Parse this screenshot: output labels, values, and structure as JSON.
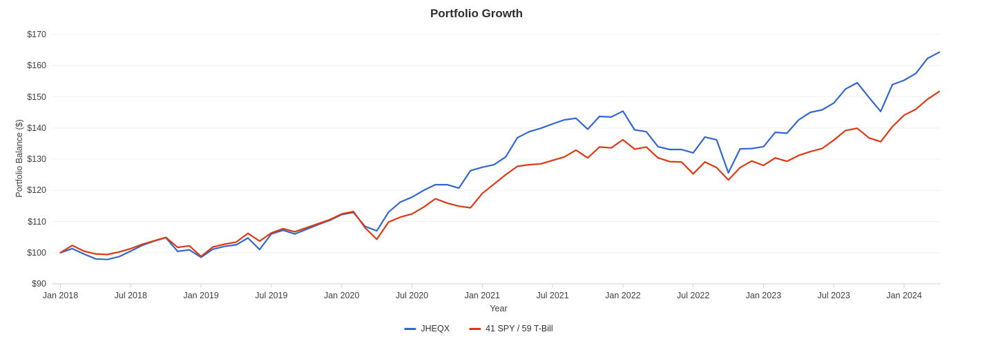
{
  "title": "Portfolio Growth",
  "background": "#ffffff",
  "colors": {
    "grid": "#f0f0f0",
    "axis": "#ccd2dc",
    "tick_text": "#3e3e3e",
    "title_text": "#2d2d2d",
    "series_blue": "#3366cc",
    "series_red": "#dc3912"
  },
  "axes": {
    "x_label": "Year",
    "y_label": "Portfolio Balance ($)",
    "y_ticks": [
      {
        "label": "$90",
        "value": 90
      },
      {
        "label": "$100",
        "value": 100
      },
      {
        "label": "$110",
        "value": 110
      },
      {
        "label": "$120",
        "value": 120
      },
      {
        "label": "$130",
        "value": 130
      },
      {
        "label": "$140",
        "value": 140
      },
      {
        "label": "$150",
        "value": 150
      },
      {
        "label": "$160",
        "value": 160
      },
      {
        "label": "$170",
        "value": 170
      }
    ],
    "x_ticks": [
      {
        "label": "Jan 2018",
        "month_index": 0
      },
      {
        "label": "Jul 2018",
        "month_index": 6
      },
      {
        "label": "Jan 2019",
        "month_index": 12
      },
      {
        "label": "Jul 2019",
        "month_index": 18
      },
      {
        "label": "Jan 2020",
        "month_index": 24
      },
      {
        "label": "Jul 2020",
        "month_index": 30
      },
      {
        "label": "Jan 2021",
        "month_index": 36
      },
      {
        "label": "Jul 2021",
        "month_index": 42
      },
      {
        "label": "Jan 2022",
        "month_index": 48
      },
      {
        "label": "Jul 2022",
        "month_index": 54
      },
      {
        "label": "Jan 2023",
        "month_index": 60
      },
      {
        "label": "Jul 2023",
        "month_index": 66
      },
      {
        "label": "Jan 2024",
        "month_index": 72
      }
    ]
  },
  "chart_data": {
    "type": "line",
    "title": "Portfolio Growth",
    "xlabel": "Year",
    "ylabel": "Portfolio Balance ($)",
    "ylim": [
      90,
      170
    ],
    "y_tick_step": 10,
    "grid": "horizontal-only",
    "legend_position": "bottom-center",
    "x_months": [
      "2018-01",
      "2018-02",
      "2018-03",
      "2018-04",
      "2018-05",
      "2018-06",
      "2018-07",
      "2018-08",
      "2018-09",
      "2018-10",
      "2018-11",
      "2018-12",
      "2019-01",
      "2019-02",
      "2019-03",
      "2019-04",
      "2019-05",
      "2019-06",
      "2019-07",
      "2019-08",
      "2019-09",
      "2019-10",
      "2019-11",
      "2019-12",
      "2020-01",
      "2020-02",
      "2020-03",
      "2020-04",
      "2020-05",
      "2020-06",
      "2020-07",
      "2020-08",
      "2020-09",
      "2020-10",
      "2020-11",
      "2020-12",
      "2021-01",
      "2021-02",
      "2021-03",
      "2021-04",
      "2021-05",
      "2021-06",
      "2021-07",
      "2021-08",
      "2021-09",
      "2021-10",
      "2021-11",
      "2021-12",
      "2022-01",
      "2022-02",
      "2022-03",
      "2022-04",
      "2022-05",
      "2022-06",
      "2022-07",
      "2022-08",
      "2022-09",
      "2022-10",
      "2022-11",
      "2022-12",
      "2023-01",
      "2023-02",
      "2023-03",
      "2023-04",
      "2023-05",
      "2023-06",
      "2023-07",
      "2023-08",
      "2023-09",
      "2023-10",
      "2023-11",
      "2023-12",
      "2024-01",
      "2024-02",
      "2024-03",
      "2024-04"
    ],
    "series": [
      {
        "name": "JHEQX",
        "color": "#3366cc",
        "values": [
          100.0,
          101.3,
          99.6,
          98.0,
          97.8,
          98.7,
          100.5,
          102.4,
          103.7,
          104.8,
          100.4,
          100.9,
          98.5,
          101.1,
          102.0,
          102.5,
          104.7,
          101.0,
          106.0,
          107.2,
          106.0,
          107.5,
          109.0,
          110.4,
          112.2,
          112.9,
          108.4,
          107.0,
          113.0,
          116.2,
          117.8,
          120.0,
          121.8,
          121.8,
          120.7,
          126.3,
          127.4,
          128.2,
          130.7,
          136.9,
          138.8,
          139.9,
          141.3,
          142.6,
          143.1,
          139.6,
          143.7,
          143.5,
          145.4,
          139.4,
          138.8,
          134.0,
          133.1,
          133.1,
          132.0,
          137.1,
          136.2,
          125.6,
          133.3,
          133.4,
          134.0,
          138.6,
          138.3,
          142.6,
          145.0,
          145.8,
          148.0,
          152.5,
          154.5,
          149.8,
          145.3,
          153.9,
          155.3,
          157.5,
          162.3,
          164.3
        ]
      },
      {
        "name": "41 SPY / 59 T-Bill",
        "color": "#dc3912",
        "values": [
          100.0,
          102.3,
          100.5,
          99.6,
          99.4,
          100.2,
          101.3,
          102.7,
          103.8,
          104.9,
          101.7,
          102.2,
          98.8,
          101.8,
          102.7,
          103.4,
          106.2,
          103.7,
          106.3,
          107.7,
          106.7,
          108.0,
          109.3,
          110.6,
          112.4,
          113.2,
          108.0,
          104.3,
          109.8,
          111.4,
          112.4,
          114.6,
          117.3,
          115.9,
          114.9,
          114.4,
          119.0,
          122.0,
          125.0,
          127.7,
          128.2,
          128.5,
          129.6,
          130.7,
          132.9,
          130.4,
          133.9,
          133.6,
          136.2,
          133.2,
          133.9,
          130.4,
          129.2,
          129.1,
          125.3,
          129.1,
          127.3,
          123.3,
          127.3,
          129.4,
          128.0,
          130.4,
          129.3,
          131.2,
          132.4,
          133.4,
          136.1,
          139.2,
          139.9,
          136.8,
          135.6,
          140.4,
          144.1,
          146.0,
          149.2,
          151.7
        ]
      }
    ]
  }
}
